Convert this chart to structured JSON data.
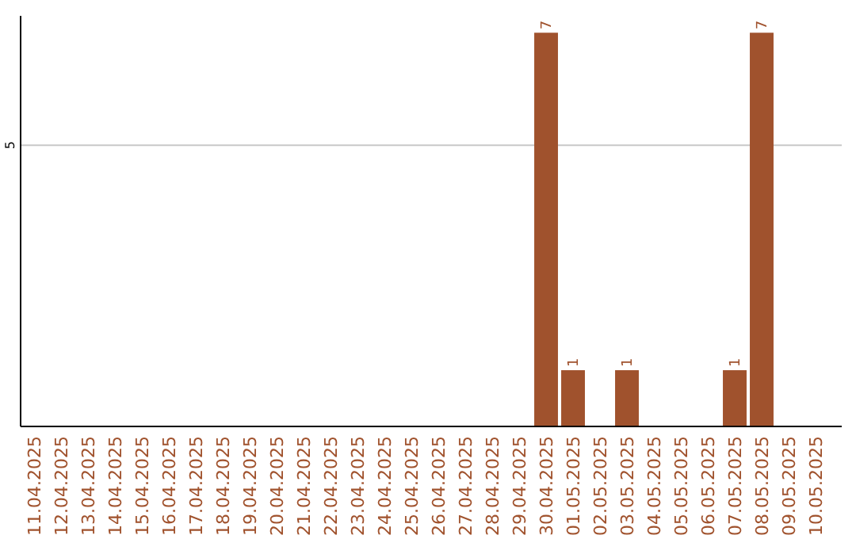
{
  "chart_data": {
    "type": "bar",
    "categories": [
      "11.04.2025",
      "12.04.2025",
      "13.04.2025",
      "14.04.2025",
      "15.04.2025",
      "16.04.2025",
      "17.04.2025",
      "18.04.2025",
      "19.04.2025",
      "20.04.2025",
      "21.04.2025",
      "22.04.2025",
      "23.04.2025",
      "24.04.2025",
      "25.04.2025",
      "26.04.2025",
      "27.04.2025",
      "28.04.2025",
      "29.04.2025",
      "30.04.2025",
      "01.05.2025",
      "02.05.2025",
      "03.05.2025",
      "04.05.2025",
      "05.05.2025",
      "06.05.2025",
      "07.05.2025",
      "08.05.2025",
      "09.05.2025",
      "10.05.2025"
    ],
    "values": [
      null,
      null,
      null,
      null,
      null,
      null,
      null,
      null,
      null,
      null,
      null,
      null,
      null,
      null,
      null,
      null,
      null,
      null,
      null,
      7,
      1,
      null,
      1,
      null,
      null,
      null,
      1,
      7,
      null,
      null
    ],
    "data_labels": true,
    "color": "#a0522d",
    "ylim": [
      0,
      7.3
    ],
    "ref_lines": [
      {
        "axis": "y",
        "value": 5,
        "label": "5",
        "color": "#c8c8c8"
      }
    ]
  }
}
